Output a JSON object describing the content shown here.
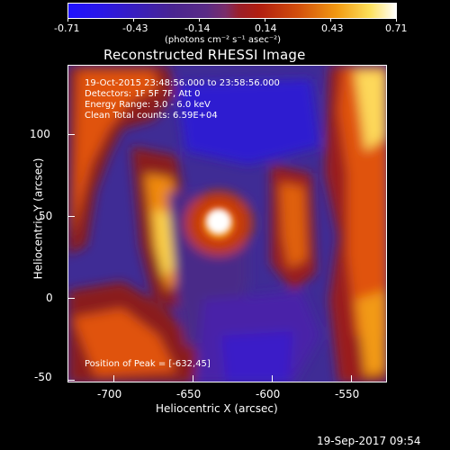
{
  "colorbar": {
    "tick_labels": [
      "-0.71",
      "-0.43",
      "-0.14",
      "0.14",
      "0.43",
      "0.71"
    ],
    "unit_label": "(photons cm⁻² s⁻¹ asec⁻²)"
  },
  "title": "Reconstructed RHESSI Image",
  "info": {
    "time_range": "19-Oct-2015 23:48:56.000 to 23:58:56.000",
    "detectors": "Detectors: 1F 5F 7F, Att 0",
    "energy": "Energy Range: 3.0 - 6.0 keV",
    "clean": "Clean     Total counts: 6.59E+04",
    "peak": "Position of Peak = [-632,45]"
  },
  "axes": {
    "xlabel": "Heliocentric X (arcsec)",
    "ylabel": "Heliocentric Y (arcsec)",
    "xticks": [
      "-700",
      "-650",
      "-600",
      "-550"
    ],
    "yticks": [
      "100",
      "50",
      "0",
      "-50"
    ]
  },
  "footer": "19-Sep-2017 09:54",
  "colors": {
    "low": "#1f12ff",
    "mid": "#3c2a90",
    "high": "#ffffff",
    "hot": "#fde05a"
  }
}
